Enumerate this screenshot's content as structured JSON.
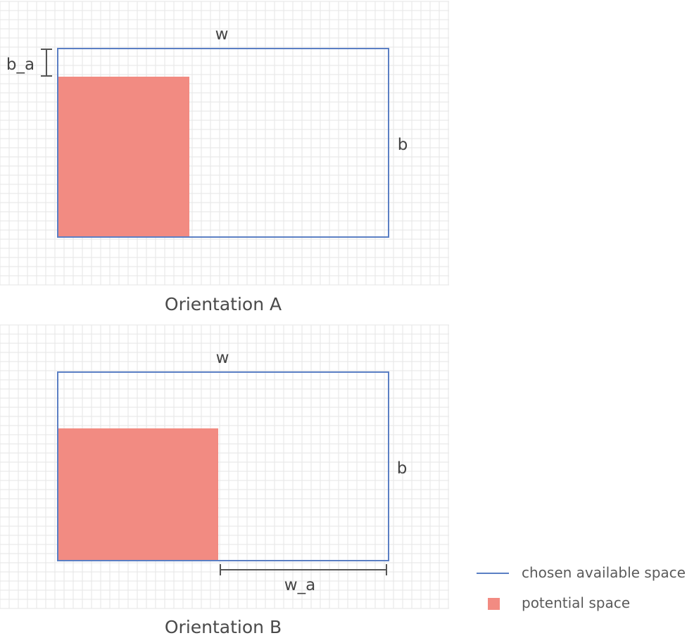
{
  "colors": {
    "available_space_line": "#5b7fc4",
    "potential_space_fill": "#f28b82",
    "grid_line": "#e6e6e6",
    "dimension_marker": "#555555",
    "text": "#444444"
  },
  "panels": [
    {
      "id": "orientation-a",
      "caption": "Orientation A",
      "width_label": "w",
      "height_label": "b",
      "gap_label": "b_a"
    },
    {
      "id": "orientation-b",
      "caption": "Orientation B",
      "width_label": "w",
      "height_label": "b",
      "gap_label": "w_a"
    }
  ],
  "legend": {
    "items": [
      {
        "label": "chosen available space",
        "symbol": "line"
      },
      {
        "label": "potential space",
        "symbol": "square"
      }
    ]
  }
}
